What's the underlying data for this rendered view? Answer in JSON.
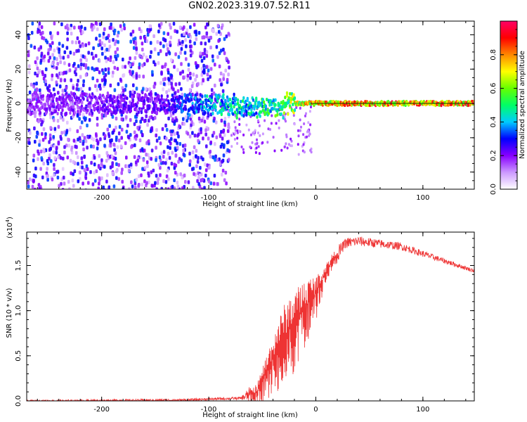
{
  "figure": {
    "title": "GN02.2023.319.07.52.R11"
  },
  "chart_data": [
    {
      "type": "heatmap",
      "xlabel": "Height of straight line (km)",
      "ylabel": "Frequency (Hz)",
      "xlim": [
        -270,
        148
      ],
      "ylim": [
        -50,
        48
      ],
      "x_ticks": [
        -200,
        -100,
        0,
        100
      ],
      "y_ticks": [
        -40,
        -20,
        0,
        20,
        40
      ],
      "colorbar": {
        "label": "Normalized spectral amplitude",
        "range": [
          0,
          1
        ],
        "ticks": [
          "0.0",
          "0.2",
          "0.4",
          "0.6",
          "0.8"
        ],
        "colors": [
          "#ffffff",
          "#cc99ff",
          "#8800ff",
          "#0000ff",
          "#00ccff",
          "#00ff66",
          "#66ff00",
          "#ffff00",
          "#ff8800",
          "#ff0000",
          "#ff0066"
        ]
      },
      "features": {
        "broadband_noise_region_km": [
          -270,
          -82
        ],
        "noise_amplitude_range": [
          0.05,
          0.35
        ],
        "signal_track_frequency_hz": 0,
        "signal_track_amplitude": [
          {
            "x": -270,
            "v": 0.2
          },
          {
            "x": -150,
            "v": 0.25
          },
          {
            "x": -100,
            "v": 0.45
          },
          {
            "x": -60,
            "v": 0.5
          },
          {
            "x": -30,
            "v": 0.6
          },
          {
            "x": -5,
            "v": 0.85
          },
          {
            "x": 148,
            "v": 0.9
          }
        ]
      }
    },
    {
      "type": "line",
      "xlabel": "Height of straight line (km)",
      "ylabel": "SNR (10 * v/v)",
      "scale_note": "(x10",
      "scale_exp": "4",
      "xlim": [
        -270,
        148
      ],
      "ylim": [
        0,
        1.87
      ],
      "x_ticks": [
        -200,
        -100,
        0,
        100
      ],
      "y_ticks": [
        "0.0",
        "0.5",
        "1.0",
        "1.5"
      ],
      "series": [
        {
          "color": "#ee3333",
          "envelope": [
            {
              "x": -270,
              "y": 0.0
            },
            {
              "x": -120,
              "y": 0.01
            },
            {
              "x": -100,
              "y": 0.02
            },
            {
              "x": -70,
              "y": 0.03
            },
            {
              "x": -55,
              "y": 0.1
            },
            {
              "x": -45,
              "y": 0.35
            },
            {
              "x": -35,
              "y": 0.6
            },
            {
              "x": -25,
              "y": 0.8
            },
            {
              "x": -15,
              "y": 0.95
            },
            {
              "x": 0,
              "y": 1.2
            },
            {
              "x": 15,
              "y": 1.55
            },
            {
              "x": 28,
              "y": 1.75
            },
            {
              "x": 40,
              "y": 1.77
            },
            {
              "x": 80,
              "y": 1.71
            },
            {
              "x": 100,
              "y": 1.63
            },
            {
              "x": 148,
              "y": 1.44
            }
          ],
          "noise_amplitude": [
            {
              "x": -270,
              "a": 0.01
            },
            {
              "x": -70,
              "a": 0.015
            },
            {
              "x": -55,
              "a": 0.15
            },
            {
              "x": -30,
              "a": 0.6
            },
            {
              "x": -10,
              "a": 0.55
            },
            {
              "x": 5,
              "a": 0.2
            },
            {
              "x": 25,
              "a": 0.06
            },
            {
              "x": 148,
              "a": 0.02
            }
          ]
        }
      ]
    }
  ]
}
